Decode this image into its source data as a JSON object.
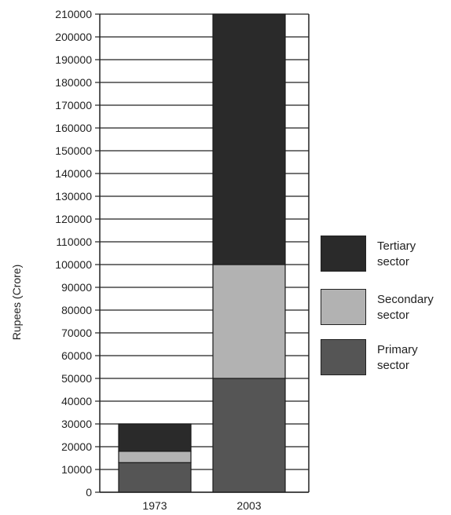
{
  "chart_data": {
    "type": "bar",
    "stacked": true,
    "categories": [
      "1973",
      "2003"
    ],
    "series": [
      {
        "name": "Primary sector",
        "values": [
          13000,
          50000
        ],
        "color": "#555555"
      },
      {
        "name": "Secondary sector",
        "values": [
          5000,
          50000
        ],
        "color": "#b2b2b2"
      },
      {
        "name": "Tertiary sector",
        "values": [
          12000,
          110000
        ],
        "color": "#2a2a2a"
      }
    ],
    "title": "",
    "xlabel": "",
    "ylabel": "Rupees (Crore)",
    "ylim": [
      0,
      210000
    ],
    "yticks": [
      0,
      10000,
      20000,
      30000,
      40000,
      50000,
      60000,
      70000,
      80000,
      90000,
      100000,
      110000,
      120000,
      130000,
      140000,
      150000,
      160000,
      170000,
      180000,
      190000,
      200000,
      210000
    ],
    "grid": true,
    "legend_position": "right"
  },
  "legend": {
    "tertiary_line1": "Tertiary",
    "tertiary_line2": "sector",
    "secondary_line1": "Secondary",
    "secondary_line2": "sector",
    "primary_line1": "Primary",
    "primary_line2": "sector"
  }
}
